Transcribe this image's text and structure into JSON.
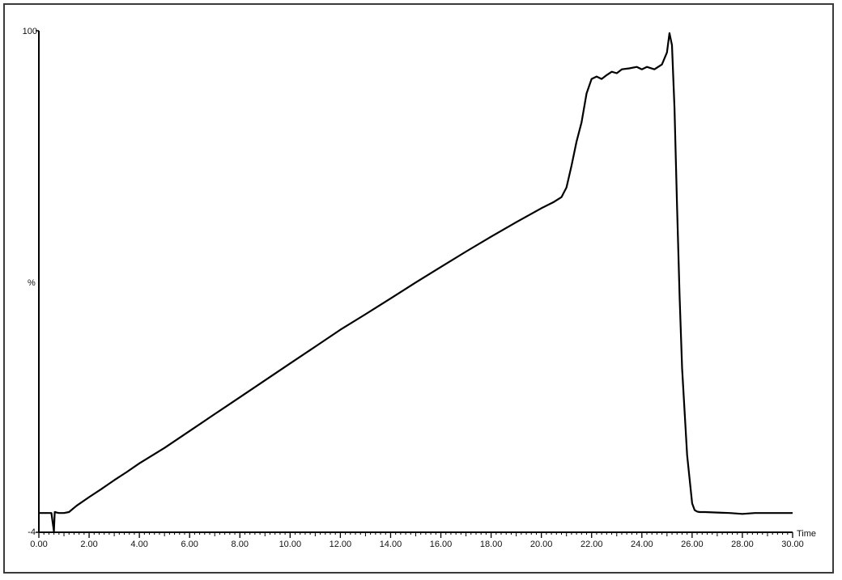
{
  "chart_data": {
    "type": "line",
    "title": "",
    "xlabel": "Time",
    "ylabel": "%",
    "xlim": [
      0,
      30
    ],
    "ylim": [
      -4,
      100
    ],
    "x_ticks": [
      0,
      2,
      4,
      6,
      8,
      10,
      12,
      14,
      16,
      18,
      20,
      22,
      24,
      26,
      28,
      30
    ],
    "x_tick_labels": [
      "0.00",
      "2.00",
      "4.00",
      "6.00",
      "8.00",
      "10.00",
      "12.00",
      "14.00",
      "16.00",
      "18.00",
      "20.00",
      "22.00",
      "24.00",
      "26.00",
      "28.00",
      "30.00"
    ],
    "y_tick_labels": [
      "100",
      "-4"
    ],
    "grid": false,
    "line_color": "#000000",
    "series": [
      {
        "x": [
          0.0,
          0.5,
          0.55,
          0.6,
          0.63,
          0.66,
          0.7,
          0.8,
          1.0,
          1.2,
          1.5,
          2.0,
          2.5,
          3.0,
          3.5,
          4.0,
          5.0,
          6.0,
          7.0,
          8.0,
          9.0,
          10.0,
          11.0,
          12.0,
          13.0,
          14.0,
          15.0,
          16.0,
          17.0,
          18.0,
          19.0,
          20.0,
          20.5,
          20.8,
          21.0,
          21.2,
          21.4,
          21.6,
          21.8,
          22.0,
          22.2,
          22.4,
          22.6,
          22.8,
          23.0,
          23.2,
          23.5,
          23.8,
          24.0,
          24.2,
          24.5,
          24.8,
          25.0,
          25.1,
          25.2,
          25.3,
          25.4,
          25.5,
          25.6,
          25.8,
          26.0,
          26.1,
          26.2,
          26.3,
          26.5,
          27.0,
          27.5,
          28.0,
          28.5,
          29.0,
          30.0
        ],
        "y": [
          0.0,
          0.0,
          -2.0,
          -3.8,
          0.2,
          0.2,
          0.1,
          0.0,
          0.0,
          0.2,
          1.5,
          3.3,
          5.0,
          6.8,
          8.5,
          10.3,
          13.5,
          17.0,
          20.5,
          24.0,
          27.5,
          31.0,
          34.5,
          38.0,
          41.2,
          44.5,
          47.8,
          51.0,
          54.2,
          57.3,
          60.3,
          63.2,
          64.5,
          65.5,
          67.5,
          72.0,
          77.0,
          81.0,
          87.0,
          90.0,
          90.5,
          90.0,
          90.8,
          91.5,
          91.2,
          92.0,
          92.2,
          92.5,
          92.0,
          92.5,
          92.0,
          93.0,
          95.5,
          99.5,
          97.0,
          84.0,
          64.0,
          45.0,
          30.0,
          12.0,
          2.0,
          0.6,
          0.3,
          0.2,
          0.2,
          0.1,
          0.0,
          -0.2,
          0.0,
          0.0,
          0.0
        ]
      }
    ]
  }
}
